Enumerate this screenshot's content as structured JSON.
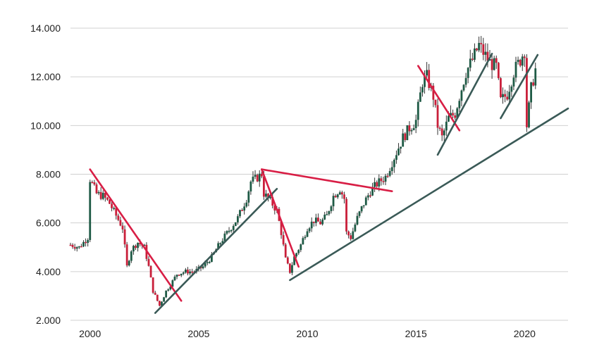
{
  "chart_data": {
    "type": "candlestick",
    "title": "",
    "xlabel": "",
    "ylabel": "",
    "xlim": [
      1999.1,
      2022.0
    ],
    "ylim": [
      2000,
      14000
    ],
    "grid": {
      "horizontal": true,
      "vertical": false
    },
    "x_ticks": [
      2000,
      2005,
      2010,
      2015,
      2020
    ],
    "y_ticks": [
      2000,
      4000,
      6000,
      8000,
      10000,
      12000,
      14000
    ],
    "y_tick_labels": [
      "2.000",
      "4.000",
      "6.000",
      "8.000",
      "10.000",
      "12.000",
      "14.000"
    ],
    "colors": {
      "up": "#1e5a45",
      "down": "#c91f3a",
      "wick": "#333333",
      "support_line": "#3a5a57",
      "resistance_line": "#d81e45",
      "grid": "#d0d0d0"
    },
    "price_path": [
      [
        1999.1,
        5100
      ],
      [
        1999.5,
        5000
      ],
      [
        1999.9,
        5400
      ],
      [
        2000.0,
        7800
      ],
      [
        2000.3,
        7200
      ],
      [
        2000.6,
        7100
      ],
      [
        2000.9,
        6800
      ],
      [
        2001.2,
        6300
      ],
      [
        2001.5,
        5800
      ],
      [
        2001.7,
        4200
      ],
      [
        2001.9,
        4900
      ],
      [
        2002.2,
        5200
      ],
      [
        2002.5,
        5000
      ],
      [
        2002.7,
        4200
      ],
      [
        2002.9,
        3200
      ],
      [
        2003.2,
        2600
      ],
      [
        2003.5,
        3200
      ],
      [
        2003.8,
        3600
      ],
      [
        2004.0,
        3900
      ],
      [
        2004.4,
        4000
      ],
      [
        2004.8,
        4000
      ],
      [
        2005.2,
        4200
      ],
      [
        2005.6,
        4600
      ],
      [
        2006.0,
        5200
      ],
      [
        2006.4,
        5700
      ],
      [
        2006.8,
        6200
      ],
      [
        2007.2,
        7000
      ],
      [
        2007.4,
        7700
      ],
      [
        2007.6,
        7800
      ],
      [
        2007.9,
        8000
      ],
      [
        2008.0,
        7200
      ],
      [
        2008.3,
        6900
      ],
      [
        2008.6,
        6500
      ],
      [
        2008.8,
        5600
      ],
      [
        2009.0,
        4500
      ],
      [
        2009.2,
        4000
      ],
      [
        2009.4,
        4600
      ],
      [
        2009.7,
        5100
      ],
      [
        2010.0,
        5800
      ],
      [
        2010.3,
        6100
      ],
      [
        2010.6,
        6000
      ],
      [
        2010.9,
        6300
      ],
      [
        2011.2,
        7100
      ],
      [
        2011.5,
        7400
      ],
      [
        2011.7,
        7000
      ],
      [
        2011.8,
        5600
      ],
      [
        2012.0,
        5400
      ],
      [
        2012.3,
        6200
      ],
      [
        2012.6,
        6800
      ],
      [
        2012.9,
        7300
      ],
      [
        2013.2,
        7600
      ],
      [
        2013.6,
        7900
      ],
      [
        2014.0,
        8700
      ],
      [
        2014.4,
        9500
      ],
      [
        2014.7,
        9900
      ],
      [
        2015.0,
        10200
      ],
      [
        2015.3,
        11800
      ],
      [
        2015.5,
        12000
      ],
      [
        2015.8,
        11200
      ],
      [
        2016.0,
        10000
      ],
      [
        2016.2,
        9500
      ],
      [
        2016.5,
        10300
      ],
      [
        2016.8,
        10500
      ],
      [
        2017.0,
        11200
      ],
      [
        2017.3,
        12200
      ],
      [
        2017.6,
        12700
      ],
      [
        2017.9,
        13300
      ],
      [
        2018.1,
        13000
      ],
      [
        2018.4,
        12600
      ],
      [
        2018.7,
        12400
      ],
      [
        2018.9,
        11000
      ],
      [
        2019.2,
        11300
      ],
      [
        2019.5,
        12200
      ],
      [
        2019.8,
        12700
      ],
      [
        2020.0,
        13100
      ],
      [
        2020.1,
        10000
      ],
      [
        2020.3,
        11500
      ],
      [
        2020.5,
        12300
      ]
    ],
    "trend_lines": [
      {
        "kind": "resistance",
        "from": [
          2000.0,
          8200
        ],
        "to": [
          2004.2,
          2800
        ]
      },
      {
        "kind": "support",
        "from": [
          2003.0,
          2300
        ],
        "to": [
          2008.6,
          7400
        ]
      },
      {
        "kind": "resistance",
        "from": [
          2007.9,
          8200
        ],
        "to": [
          2013.9,
          7300
        ]
      },
      {
        "kind": "resistance",
        "from": [
          2007.9,
          8200
        ],
        "to": [
          2009.6,
          4200
        ]
      },
      {
        "kind": "support",
        "from": [
          2009.2,
          3650
        ],
        "to": [
          2022.0,
          10700
        ]
      },
      {
        "kind": "resistance",
        "from": [
          2015.1,
          12450
        ],
        "to": [
          2017.0,
          9800
        ]
      },
      {
        "kind": "support",
        "from": [
          2016.0,
          8800
        ],
        "to": [
          2018.5,
          12950
        ]
      },
      {
        "kind": "support",
        "from": [
          2018.9,
          10300
        ],
        "to": [
          2020.6,
          12900
        ]
      }
    ]
  }
}
